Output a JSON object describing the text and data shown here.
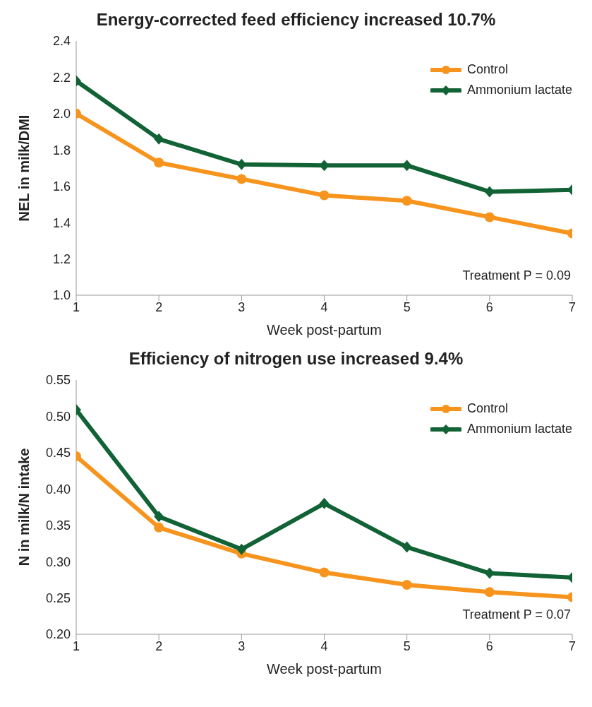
{
  "chart_data": [
    {
      "type": "line",
      "title": "Energy-corrected feed efficiency increased 10.7%",
      "xlabel": "Week post-partum",
      "ylabel": "NEL in milk/DMI",
      "x": [
        1,
        2,
        3,
        4,
        5,
        6,
        7
      ],
      "xlim": [
        1,
        7
      ],
      "xticks": [
        1,
        2,
        3,
        4,
        5,
        6,
        7
      ],
      "ylim": [
        1.0,
        2.4
      ],
      "yticks": [
        {
          "value": 1.0,
          "label": "1.0"
        },
        1.2,
        1.4,
        1.6,
        1.8,
        {
          "value": 2.0,
          "label": "2.0"
        },
        2.2,
        2.4
      ],
      "grid": false,
      "legend": "top right",
      "line_style": "solid",
      "annotations": [
        "Treatment P = 0.09"
      ],
      "series": [
        {
          "name": "Control",
          "color": "#f7941d",
          "marker": "circle",
          "values": [
            2.0,
            1.73,
            1.64,
            1.55,
            1.52,
            1.43,
            1.34
          ]
        },
        {
          "name": "Ammonium lactate",
          "color": "#116235",
          "marker": "diamond",
          "values": [
            2.18,
            1.86,
            1.72,
            1.715,
            1.715,
            1.57,
            1.58
          ]
        }
      ]
    },
    {
      "type": "line",
      "title": "Efficiency of nitrogen use increased 9.4%",
      "xlabel": "Week post-partum",
      "ylabel": "N in milk/N intake",
      "x": [
        1,
        2,
        3,
        4,
        5,
        6,
        7
      ],
      "xlim": [
        1,
        7
      ],
      "xticks": [
        1,
        2,
        3,
        4,
        5,
        6,
        7
      ],
      "ylim": [
        0.2,
        0.55
      ],
      "yticks": [
        {
          "value": 0.2,
          "label": "0.20"
        },
        0.25,
        {
          "value": 0.3,
          "label": "0.30"
        },
        0.35,
        {
          "value": 0.4,
          "label": "0.40"
        },
        0.45,
        {
          "value": 0.5,
          "label": "0.50"
        },
        0.55
      ],
      "grid": false,
      "legend": "top right",
      "line_style": "solid",
      "annotations": [
        "Treatment P = 0.07"
      ],
      "series": [
        {
          "name": "Control",
          "color": "#f7941d",
          "marker": "circle",
          "values": [
            0.445,
            0.347,
            0.311,
            0.285,
            0.268,
            0.258,
            0.251
          ]
        },
        {
          "name": "Ammonium lactate",
          "color": "#116235",
          "marker": "diamond",
          "values": [
            0.509,
            0.362,
            0.317,
            0.38,
            0.32,
            0.284,
            0.278
          ]
        }
      ]
    }
  ]
}
